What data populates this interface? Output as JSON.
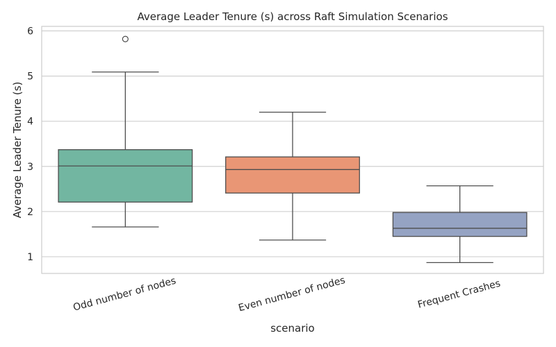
{
  "chart_data": {
    "type": "box",
    "title": "Average Leader Tenure (s) across Raft Simulation Scenarios",
    "xlabel": "scenario",
    "ylabel": "Average Leader Tenure (s)",
    "ylim": [
      0.63,
      6.1
    ],
    "yticks": [
      1,
      2,
      3,
      4,
      5,
      6
    ],
    "grid": true,
    "categories": [
      "Odd number of nodes",
      "Even number of nodes",
      "Frequent Crashes"
    ],
    "colors": [
      "#72b6a1",
      "#e99675",
      "#95a3c3"
    ],
    "boxes": [
      {
        "category": "Odd number of nodes",
        "whisker_low": 1.66,
        "q1": 2.21,
        "median": 3.01,
        "q3": 3.37,
        "whisker_high": 5.09,
        "outliers": [
          5.82
        ]
      },
      {
        "category": "Even number of nodes",
        "whisker_low": 1.37,
        "q1": 2.41,
        "median": 2.93,
        "q3": 3.21,
        "whisker_high": 4.2,
        "outliers": []
      },
      {
        "category": "Frequent Crashes",
        "whisker_low": 0.87,
        "q1": 1.45,
        "median": 1.63,
        "q3": 1.98,
        "whisker_high": 2.57,
        "outliers": []
      }
    ]
  }
}
